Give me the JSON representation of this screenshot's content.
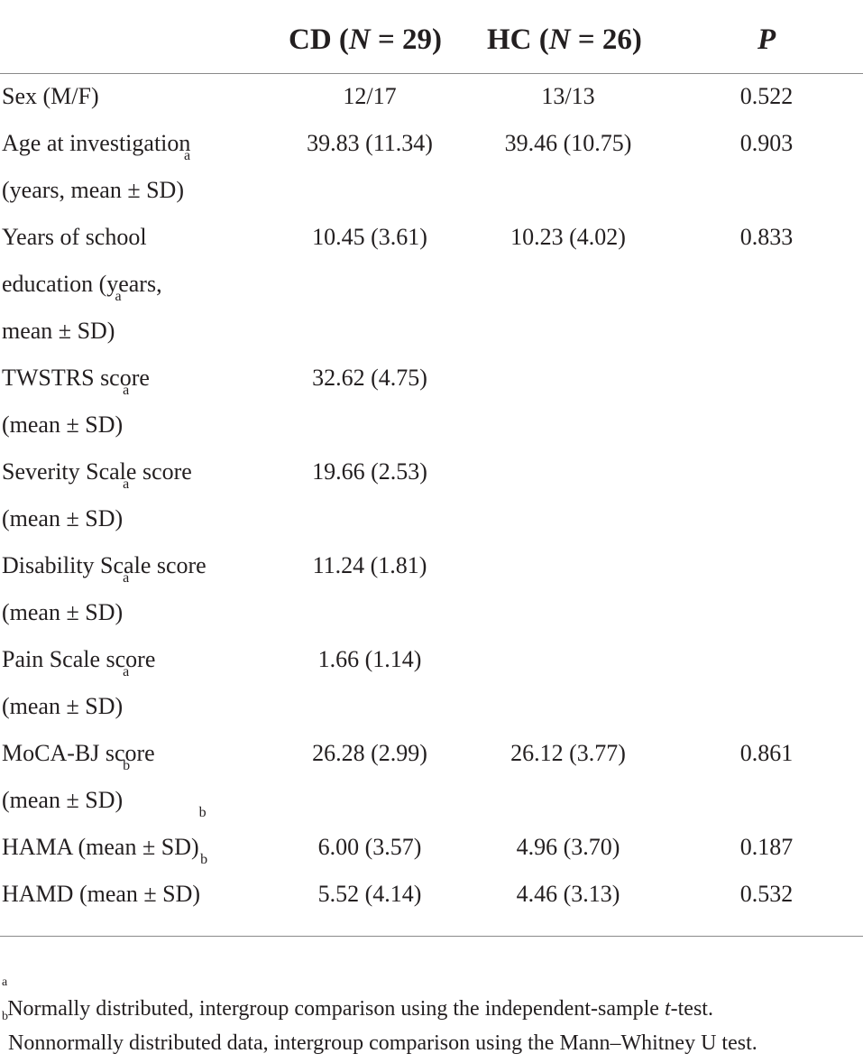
{
  "table": {
    "headers": {
      "col1_prefix": "CD (",
      "col1_n": "N",
      "col1_suffix": " = 29)",
      "col2_prefix": "HC (",
      "col2_n": "N",
      "col2_suffix": " = 26)",
      "col3": "P"
    },
    "rows": [
      {
        "label_lines": [
          "Sex (M/F)"
        ],
        "sup": "",
        "cd": "12/17",
        "hc": "13/13",
        "p": "0.522"
      },
      {
        "label_lines": [
          "Age at investigation",
          "(years, mean ± SD)"
        ],
        "sup": "a",
        "cd": "39.83 (11.34)",
        "hc": "39.46 (10.75)",
        "p": "0.903"
      },
      {
        "label_lines": [
          "Years of school",
          "education (years,",
          "mean ± SD)"
        ],
        "sup": "a",
        "cd": "10.45 (3.61)",
        "hc": "10.23 (4.02)",
        "p": "0.833"
      },
      {
        "label_lines": [
          "TWSTRS score",
          "(mean ± SD)"
        ],
        "sup": "a",
        "cd": "32.62 (4.75)",
        "hc": "",
        "p": ""
      },
      {
        "label_lines": [
          "Severity Scale score",
          "(mean ± SD)"
        ],
        "sup": "a",
        "cd": "19.66 (2.53)",
        "hc": "",
        "p": ""
      },
      {
        "label_lines": [
          "Disability Scale score",
          "(mean ± SD)"
        ],
        "sup": "a",
        "cd": "11.24 (1.81)",
        "hc": "",
        "p": ""
      },
      {
        "label_lines": [
          "Pain Scale score",
          "(mean ± SD)"
        ],
        "sup": "a",
        "cd": "1.66 (1.14)",
        "hc": "",
        "p": ""
      },
      {
        "label_lines": [
          "MoCA-BJ score",
          "(mean ± SD)"
        ],
        "sup": "b",
        "cd": "26.28 (2.99)",
        "hc": "26.12 (3.77)",
        "p": "0.861"
      },
      {
        "label_lines": [
          "HAMA (mean ± SD)"
        ],
        "sup": "b",
        "cd": "6.00 (3.57)",
        "hc": "4.96 (3.70)",
        "p": "0.187"
      },
      {
        "label_lines": [
          "HAMD (mean ± SD)"
        ],
        "sup": "b",
        "cd": "5.52 (4.14)",
        "hc": "4.46 (3.13)",
        "p": "0.532"
      }
    ]
  },
  "footnotes": {
    "a_mark": "a",
    "a_text_before": "Normally distributed, intergroup comparison using the independent-sample ",
    "a_italic": "t",
    "a_text_after": "-test.",
    "b_mark": "b",
    "b_text": "Nonnormally distributed data, intergroup comparison using the Mann–Whitney U test."
  }
}
